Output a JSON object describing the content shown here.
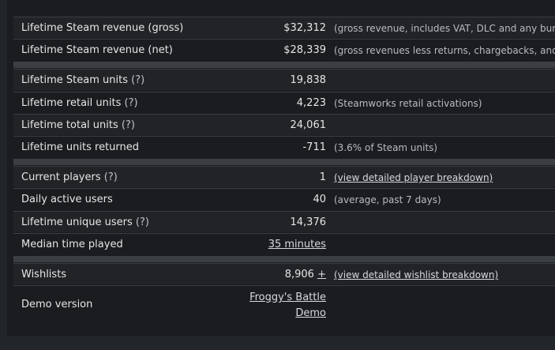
{
  "rows": {
    "gross": {
      "label": "Lifetime Steam revenue (gross)",
      "value": "$32,312",
      "note": "(gross revenue, includes VAT, DLC and any bundles"
    },
    "net": {
      "label": "Lifetime Steam revenue (net)",
      "value": "$28,339",
      "note": "(gross revenues less returns, chargebacks, and tax"
    },
    "steam_units": {
      "label": "Lifetime Steam units",
      "help": "(?)",
      "value": "19,838"
    },
    "retail_units": {
      "label": "Lifetime retail units",
      "help": "(?)",
      "value": "4,223",
      "note": "(Steamworks retail activations)"
    },
    "total_units": {
      "label": "Lifetime total units",
      "help": "(?)",
      "value": "24,061"
    },
    "units_returned": {
      "label": "Lifetime units returned",
      "value": "-711",
      "note": "(3.6% of Steam units)"
    },
    "current_players": {
      "label": "Current players",
      "help": "(?)",
      "value": "1",
      "link": "(view detailed player breakdown)"
    },
    "daily_active": {
      "label": "Daily active users",
      "value": "40",
      "note": "(average, past 7 days)"
    },
    "unique_users": {
      "label": "Lifetime unique users",
      "help": "(?)",
      "value": "14,376"
    },
    "median_time": {
      "label": "Median time played",
      "value": "35 minutes"
    },
    "wishlists": {
      "label": "Wishlists",
      "value": "8,906",
      "plus": "+",
      "link": "(view detailed wishlist breakdown)"
    },
    "demo": {
      "label": "Demo version",
      "value_line1": "Froggy's Battle",
      "value_line2": "Demo"
    }
  }
}
